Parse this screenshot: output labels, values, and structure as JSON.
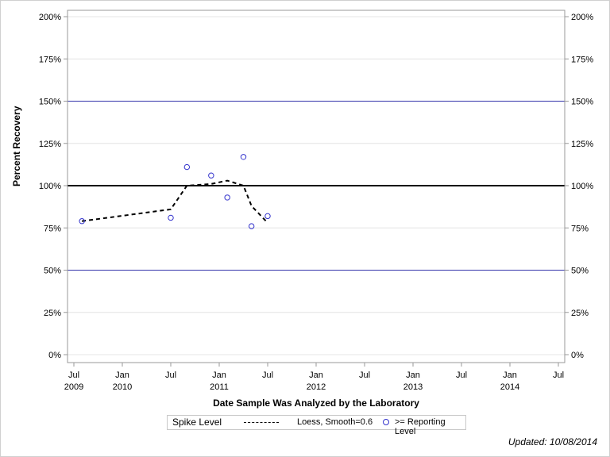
{
  "chart_data": {
    "type": "scatter",
    "title": "",
    "xlabel": "Date Sample Was Analyzed by the Laboratory",
    "ylabel": "Percent Recovery",
    "ylim": [
      0,
      200
    ],
    "y_ticks": [
      "0%",
      "25%",
      "50%",
      "75%",
      "100%",
      "125%",
      "150%",
      "175%",
      "200%"
    ],
    "x_ticks": [
      {
        "label": "Jul",
        "sub": "2009"
      },
      {
        "label": "Jan",
        "sub": "2010"
      },
      {
        "label": "Jul",
        "sub": ""
      },
      {
        "label": "Jan",
        "sub": "2011"
      },
      {
        "label": "Jul",
        "sub": ""
      },
      {
        "label": "Jan",
        "sub": "2012"
      },
      {
        "label": "Jul",
        "sub": ""
      },
      {
        "label": "Jan",
        "sub": "2013"
      },
      {
        "label": "Jul",
        "sub": ""
      },
      {
        "label": "Jan",
        "sub": "2014"
      },
      {
        "label": "Jul",
        "sub": ""
      }
    ],
    "reference_lines": [
      {
        "y": 100,
        "color": "#000000",
        "label": "Spike Level"
      },
      {
        "y": 150,
        "color": "#3333aa"
      },
      {
        "y": 50,
        "color": "#3333aa"
      }
    ],
    "series": [
      {
        "name": ">= Reporting Level",
        "kind": "scatter",
        "color": "#3333cc",
        "points": [
          {
            "date": "2009-08",
            "value": 79
          },
          {
            "date": "2010-07",
            "value": 81
          },
          {
            "date": "2010-09",
            "value": 111
          },
          {
            "date": "2010-12",
            "value": 106
          },
          {
            "date": "2011-02",
            "value": 93
          },
          {
            "date": "2011-04",
            "value": 117
          },
          {
            "date": "2011-05",
            "value": 76
          },
          {
            "date": "2011-07",
            "value": 82
          }
        ]
      },
      {
        "name": "Loess, Smooth=0.6",
        "kind": "line",
        "style": "dashed",
        "color": "#000000",
        "points": [
          {
            "date": "2009-08",
            "value": 79
          },
          {
            "date": "2010-07",
            "value": 86
          },
          {
            "date": "2010-09",
            "value": 100
          },
          {
            "date": "2010-12",
            "value": 101
          },
          {
            "date": "2011-02",
            "value": 103
          },
          {
            "date": "2011-04",
            "value": 100
          },
          {
            "date": "2011-05",
            "value": 88
          },
          {
            "date": "2011-07",
            "value": 78
          }
        ]
      }
    ],
    "legend": {
      "position": "bottom",
      "title": "Spike Level",
      "entries": [
        "Loess, Smooth=0.6",
        ">= Reporting Level"
      ]
    },
    "grid": true
  },
  "footer": {
    "updated": "Updated: 10/08/2014"
  }
}
